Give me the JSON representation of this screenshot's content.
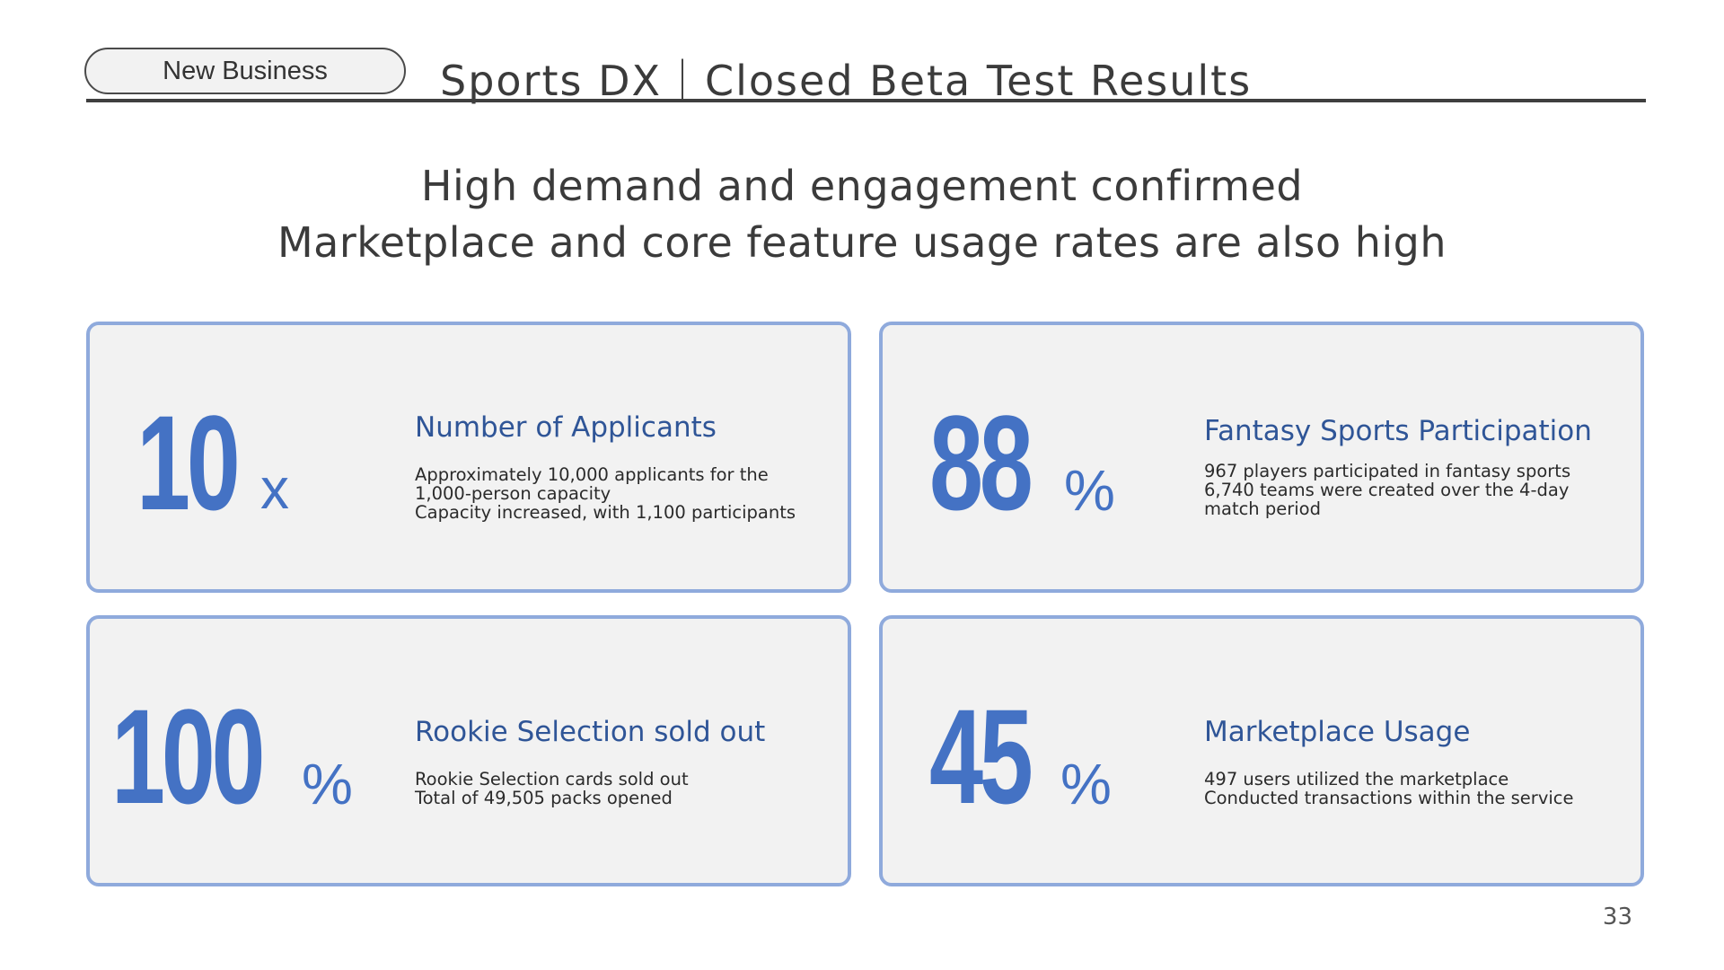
{
  "header": {
    "section_label": "New Business",
    "title": "Sports DX｜Closed Beta Test Results"
  },
  "headline": {
    "line1": "High demand and engagement confirmed",
    "line2": "Marketplace and core feature usage rates are also high"
  },
  "cards": [
    {
      "value": "10",
      "unit": "x",
      "title": "Number of Applicants",
      "lines": [
        "Approximately 10,000 applicants for the",
        "1,000-person capacity",
        "Capacity increased, with 1,100 participants"
      ]
    },
    {
      "value": "88",
      "unit": "%",
      "title": "Fantasy Sports Participation",
      "lines": [
        "967 players participated in fantasy sports",
        "6,740 teams were created over the 4-day",
        "match period"
      ]
    },
    {
      "value": "100",
      "unit": "%",
      "title": "Rookie Selection sold out",
      "lines": [
        "Rookie Selection cards sold out",
        "Total of 49,505 packs opened"
      ]
    },
    {
      "value": "45",
      "unit": "%",
      "title": "Marketplace Usage",
      "lines": [
        "497 users utilized the marketplace",
        "Conducted transactions within the service"
      ]
    }
  ],
  "footer": {
    "page_number": "33"
  },
  "colors": {
    "accent": "#4472c4",
    "title_blue": "#2f5597",
    "card_border": "#8faadc",
    "card_bg": "#f2f2f2"
  }
}
